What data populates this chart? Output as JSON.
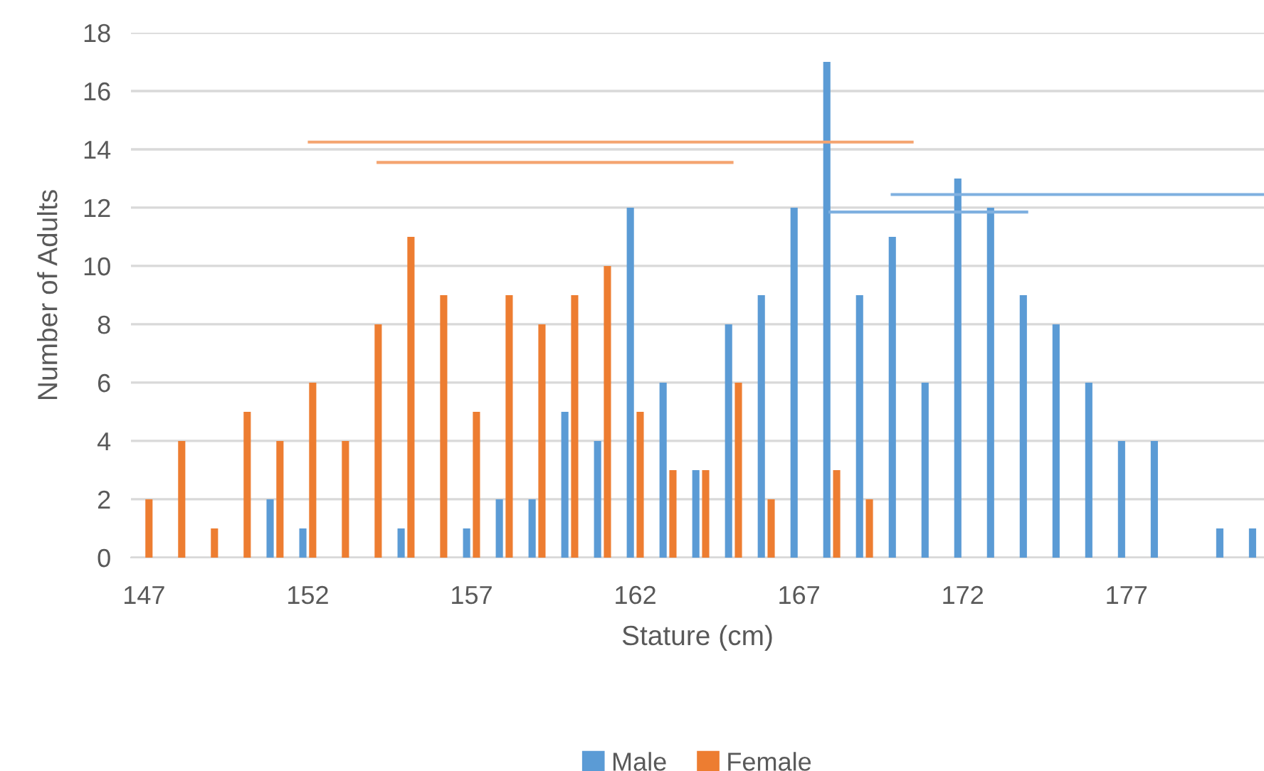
{
  "chart_data": {
    "type": "bar",
    "xlabel": "Stature (cm)",
    "ylabel": "Number of Adults",
    "x": [
      147,
      148,
      149,
      150,
      151,
      152,
      153,
      154,
      155,
      156,
      157,
      158,
      159,
      160,
      161,
      162,
      163,
      164,
      165,
      166,
      167,
      168,
      169,
      170,
      171,
      172,
      173,
      174,
      175,
      176,
      177,
      178,
      179,
      180,
      181
    ],
    "series": [
      {
        "name": "Male",
        "color": "#5b9bd5",
        "values": [
          0,
          0,
          0,
          0,
          2,
          1,
          0,
          0,
          1,
          0,
          1,
          2,
          2,
          5,
          4,
          12,
          6,
          3,
          8,
          9,
          12,
          17,
          9,
          11,
          6,
          13,
          12,
          9,
          8,
          6,
          4,
          4,
          0,
          1,
          1
        ]
      },
      {
        "name": "Female",
        "color": "#ed7d31",
        "values": [
          2,
          4,
          1,
          5,
          4,
          6,
          4,
          8,
          11,
          9,
          5,
          9,
          8,
          9,
          10,
          5,
          3,
          3,
          6,
          2,
          0,
          3,
          2,
          0,
          0,
          0,
          0,
          0,
          0,
          0,
          0,
          0,
          0,
          0,
          0
        ]
      },
      {
        "type": "line",
        "color": "#f4a470",
        "x": [
          152.0,
          170.5
        ],
        "values": [
          14.25,
          14.25
        ]
      },
      {
        "type": "line",
        "color": "#f4a470",
        "x": [
          154.1,
          165.0
        ],
        "values": [
          13.55,
          13.55
        ]
      },
      {
        "type": "line",
        "color": "#7fb0e0",
        "x": [
          169.8,
          181.2
        ],
        "values": [
          12.45,
          12.45
        ]
      },
      {
        "type": "line",
        "color": "#7fb0e0",
        "x": [
          167.9,
          174.0
        ],
        "values": [
          11.85,
          11.85
        ]
      }
    ],
    "xlim": [
      146.6,
      181.2
    ],
    "xticks": [
      147,
      152,
      157,
      162,
      167,
      172,
      177
    ],
    "ylim": [
      0,
      18
    ],
    "yticks": [
      0,
      2,
      4,
      6,
      8,
      10,
      12,
      14,
      16,
      18
    ],
    "grid": "y",
    "legend": "bottom"
  }
}
